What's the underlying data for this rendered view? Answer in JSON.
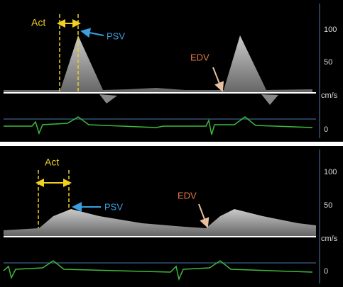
{
  "panels": [
    {
      "act": "Act",
      "psv": "PSV",
      "edv": "EDV",
      "scale": [
        "100",
        "50",
        "cm/s",
        "0"
      ]
    },
    {
      "act": "Act",
      "psv": "PSV",
      "edv": "EDV",
      "scale": [
        "100",
        "50",
        "cm/s",
        "0"
      ]
    }
  ]
}
